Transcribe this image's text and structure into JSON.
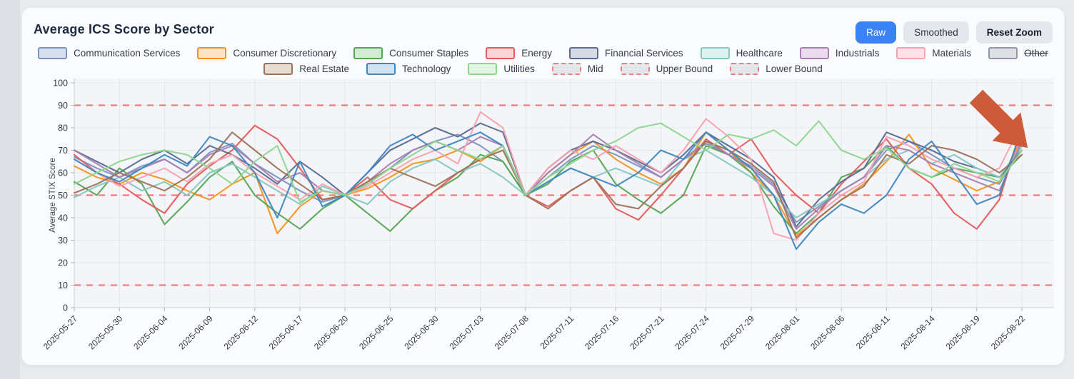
{
  "card": {
    "title": "Average ICS Score by Sector"
  },
  "toolbar": {
    "raw_label": "Raw",
    "smoothed_label": "Smoothed",
    "reset_label": "Reset Zoom",
    "active_button": "Raw",
    "primary_color": "#3b82f6"
  },
  "legend": {
    "rows": [
      [
        {
          "label": "Communication Services",
          "color": "#7b94be",
          "fill": "#d6dfee",
          "dashed": false,
          "disabled": false
        },
        {
          "label": "Consumer Discretionary",
          "color": "#f5921e",
          "fill": "#fde4c6",
          "dashed": false,
          "disabled": false
        },
        {
          "label": "Consumer Staples",
          "color": "#55a555",
          "fill": "#d4ead4",
          "dashed": false,
          "disabled": false
        },
        {
          "label": "Energy",
          "color": "#e45b5b",
          "fill": "#f9d5d5",
          "dashed": false,
          "disabled": false
        },
        {
          "label": "Financial Services",
          "color": "#5a6c8f",
          "fill": "#d5dae4",
          "dashed": false,
          "disabled": false
        },
        {
          "label": "Healthcare",
          "color": "#85c8c0",
          "fill": "#dff1ef",
          "dashed": false,
          "disabled": false
        },
        {
          "label": "Industrials",
          "color": "#a97fb4",
          "fill": "#e9dcec",
          "dashed": false,
          "disabled": false
        },
        {
          "label": "Materials",
          "color": "#f8a2b0",
          "fill": "#fde3e8",
          "dashed": false,
          "disabled": false
        },
        {
          "label": "Other",
          "color": "#8f99a6",
          "fill": "#dde1e6",
          "dashed": false,
          "disabled": true
        }
      ],
      [
        {
          "label": "Real Estate",
          "color": "#9e7257",
          "fill": "#e7dcd4",
          "dashed": false,
          "disabled": false
        },
        {
          "label": "Technology",
          "color": "#3f88c1",
          "fill": "#d0e3f2",
          "dashed": false,
          "disabled": false
        },
        {
          "label": "Utilities",
          "color": "#8dd68d",
          "fill": "#e2f5e2",
          "dashed": false,
          "disabled": false
        },
        {
          "label": "Mid",
          "color": "#ef7d7d",
          "fill": "#e3e6ea",
          "dashed": true,
          "disabled": false
        },
        {
          "label": "Upper Bound",
          "color": "#ef7d7d",
          "fill": "#e3e6ea",
          "dashed": true,
          "disabled": false
        },
        {
          "label": "Lower Bound",
          "color": "#ef7d7d",
          "fill": "#e3e6ea",
          "dashed": true,
          "disabled": false
        }
      ]
    ]
  },
  "chart_data": {
    "type": "line",
    "title": "Average ICS Score by Sector",
    "xlabel": "",
    "ylabel": "Average STIX Score",
    "ylim": [
      0,
      100
    ],
    "yticks": [
      0,
      10,
      20,
      30,
      40,
      50,
      60,
      70,
      80,
      90,
      100
    ],
    "grid": true,
    "legend_position": "top",
    "x_tick_labels": [
      "2025-05-27",
      "2025-05-30",
      "2025-06-04",
      "2025-06-09",
      "2025-06-12",
      "2025-06-17",
      "2025-06-20",
      "2025-06-25",
      "2025-06-30",
      "2025-07-03",
      "2025-07-08",
      "2025-07-11",
      "2025-07-16",
      "2025-07-21",
      "2025-07-24",
      "2025-07-29",
      "2025-08-01",
      "2025-08-06",
      "2025-08-11",
      "2025-08-14",
      "2025-08-19",
      "2025-08-22"
    ],
    "points_per_tick": 2,
    "bounds": {
      "upper": 90,
      "mid": 50,
      "lower": 10,
      "color": "#ef7d7d",
      "style": "dashed"
    },
    "series": [
      {
        "name": "Communication Services",
        "color": "#7b94be",
        "values": [
          67,
          62,
          58,
          63,
          66,
          60,
          69,
          73,
          64,
          58,
          52,
          47,
          50,
          55,
          62,
          70,
          74,
          77,
          72,
          65,
          50,
          58,
          66,
          72,
          68,
          63,
          58,
          66,
          73,
          68,
          63,
          55,
          38,
          45,
          52,
          58,
          70,
          74,
          68,
          62,
          58,
          55,
          72
        ]
      },
      {
        "name": "Consumer Discretionary",
        "color": "#f5921e",
        "values": [
          63,
          58,
          55,
          60,
          57,
          52,
          48,
          55,
          60,
          33,
          45,
          52,
          50,
          53,
          58,
          64,
          66,
          70,
          65,
          72,
          50,
          60,
          68,
          74,
          66,
          60,
          55,
          62,
          78,
          70,
          60,
          50,
          32,
          40,
          48,
          55,
          65,
          77,
          62,
          57,
          52,
          56,
          75
        ]
      },
      {
        "name": "Consumer Staples",
        "color": "#55a555",
        "values": [
          56,
          50,
          62,
          55,
          37,
          47,
          58,
          65,
          50,
          42,
          35,
          44,
          50,
          42,
          34,
          44,
          52,
          58,
          68,
          65,
          50,
          55,
          65,
          70,
          55,
          48,
          42,
          50,
          72,
          68,
          60,
          45,
          33,
          42,
          58,
          62,
          72,
          62,
          58,
          62,
          60,
          58,
          68
        ]
      },
      {
        "name": "Energy",
        "color": "#e45b5b",
        "values": [
          68,
          60,
          55,
          48,
          42,
          55,
          63,
          70,
          81,
          75,
          62,
          48,
          50,
          58,
          48,
          44,
          52,
          60,
          66,
          72,
          50,
          45,
          52,
          58,
          44,
          39,
          50,
          62,
          75,
          68,
          75,
          60,
          50,
          42,
          55,
          65,
          75,
          62,
          55,
          42,
          35,
          48,
          80
        ]
      },
      {
        "name": "Financial Services",
        "color": "#5a6c8f",
        "values": [
          70,
          65,
          60,
          66,
          70,
          64,
          72,
          68,
          62,
          55,
          65,
          58,
          50,
          60,
          70,
          75,
          80,
          76,
          82,
          78,
          50,
          62,
          70,
          74,
          70,
          65,
          60,
          68,
          78,
          72,
          66,
          58,
          36,
          48,
          56,
          62,
          78,
          74,
          70,
          65,
          62,
          58,
          70
        ]
      },
      {
        "name": "Healthcare",
        "color": "#85c8c0",
        "values": [
          49,
          54,
          58,
          52,
          56,
          50,
          60,
          64,
          58,
          52,
          46,
          54,
          50,
          46,
          56,
          62,
          66,
          60,
          64,
          58,
          50,
          56,
          62,
          58,
          62,
          58,
          54,
          66,
          70,
          64,
          58,
          50,
          40,
          46,
          52,
          58,
          66,
          70,
          64,
          68,
          62,
          58,
          72
        ]
      },
      {
        "name": "Industrials",
        "color": "#a97fb4",
        "values": [
          70,
          64,
          58,
          62,
          66,
          60,
          68,
          72,
          64,
          56,
          60,
          52,
          50,
          56,
          64,
          70,
          74,
          70,
          76,
          72,
          50,
          60,
          68,
          77,
          70,
          64,
          58,
          66,
          74,
          68,
          62,
          54,
          35,
          44,
          52,
          58,
          72,
          70,
          64,
          60,
          56,
          52,
          74
        ]
      },
      {
        "name": "Materials",
        "color": "#f8a2b0",
        "values": [
          66,
          60,
          54,
          58,
          62,
          56,
          64,
          68,
          60,
          54,
          48,
          55,
          50,
          54,
          60,
          66,
          70,
          64,
          87,
          80,
          50,
          62,
          70,
          66,
          72,
          66,
          60,
          70,
          84,
          76,
          66,
          33,
          30,
          42,
          50,
          56,
          76,
          72,
          66,
          62,
          58,
          62,
          82
        ]
      },
      {
        "name": "Other",
        "color": "#8f99a6",
        "disabled": true,
        "values": []
      },
      {
        "name": "Real Estate",
        "color": "#9e7257",
        "values": [
          51,
          55,
          60,
          56,
          52,
          58,
          66,
          78,
          70,
          62,
          55,
          48,
          50,
          56,
          62,
          58,
          54,
          60,
          66,
          70,
          50,
          44,
          52,
          58,
          46,
          44,
          54,
          62,
          74,
          70,
          64,
          56,
          31,
          40,
          48,
          54,
          68,
          64,
          72,
          70,
          66,
          60,
          68
        ]
      },
      {
        "name": "Technology",
        "color": "#3f88c1",
        "values": [
          66,
          60,
          56,
          62,
          68,
          63,
          76,
          72,
          60,
          40,
          65,
          45,
          50,
          60,
          72,
          77,
          70,
          74,
          78,
          72,
          50,
          56,
          62,
          58,
          54,
          60,
          70,
          66,
          78,
          70,
          62,
          50,
          26,
          38,
          46,
          42,
          50,
          66,
          74,
          60,
          46,
          50,
          80
        ]
      },
      {
        "name": "Utilities",
        "color": "#8dd68d",
        "values": [
          55,
          60,
          65,
          68,
          70,
          68,
          62,
          55,
          65,
          72,
          47,
          52,
          50,
          55,
          62,
          68,
          74,
          70,
          66,
          72,
          50,
          58,
          64,
          70,
          74,
          80,
          82,
          76,
          70,
          77,
          75,
          79,
          72,
          83,
          70,
          66,
          71,
          62,
          58,
          64,
          60,
          56,
          70
        ]
      }
    ],
    "annotations": [
      {
        "type": "arrow",
        "direction": "down-right",
        "color": "#cd5a38",
        "position": "top-right"
      }
    ]
  }
}
